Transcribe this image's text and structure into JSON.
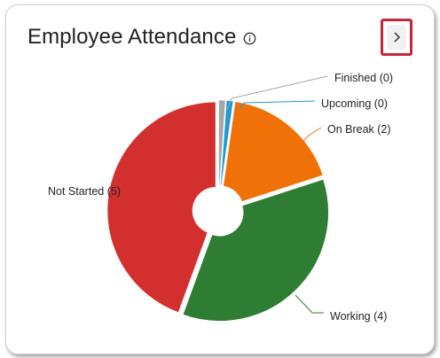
{
  "widget": {
    "title": "Employee Attendance",
    "info_icon": "info-circle-icon",
    "nav_icon": "chevron-right-icon"
  },
  "chart_data": {
    "type": "pie",
    "title": "",
    "slices": [
      {
        "name": "Finished",
        "value": 0,
        "label": "Finished (0)",
        "color": "#a6a6a6"
      },
      {
        "name": "Upcoming",
        "value": 0,
        "label": "Upcoming (0)",
        "color": "#1f9bd1"
      },
      {
        "name": "On Break",
        "value": 2,
        "label": "On Break (2)",
        "color": "#ef7108"
      },
      {
        "name": "Working",
        "value": 4,
        "label": "Working (4)",
        "color": "#2e7d32"
      },
      {
        "name": "Not Started",
        "value": 5,
        "label": "Not Started (5)",
        "color": "#d32f2f"
      }
    ],
    "donut_hole": true
  }
}
